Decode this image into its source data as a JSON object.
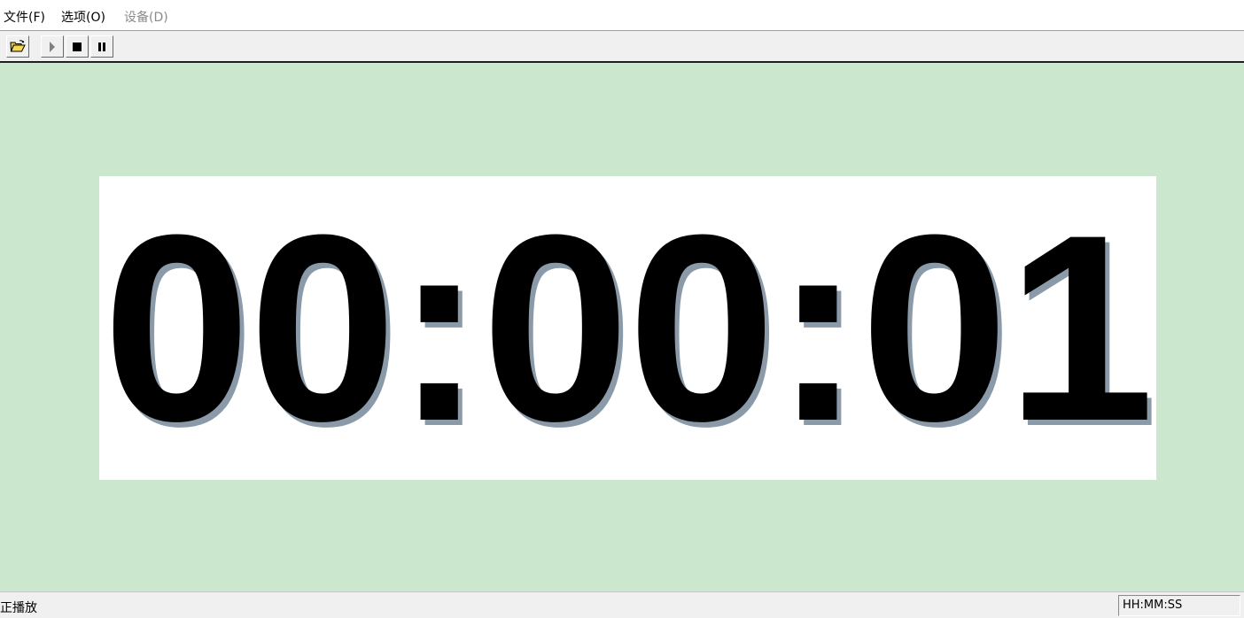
{
  "menu": {
    "file": "文件(F)",
    "options": "选项(O)",
    "device": "设备(D)"
  },
  "toolbar": {
    "open_icon": "folder-open-icon",
    "play_icon": "play-icon",
    "stop_icon": "stop-icon",
    "pause_icon": "pause-icon"
  },
  "timer": {
    "display": "00:00:01"
  },
  "status": {
    "message": "正播放",
    "format": "HH:MM:SS"
  },
  "colors": {
    "background": "#cbe8cf",
    "panel": "#ffffff",
    "digits": "#000000",
    "shadow": "#8a9aa8"
  }
}
